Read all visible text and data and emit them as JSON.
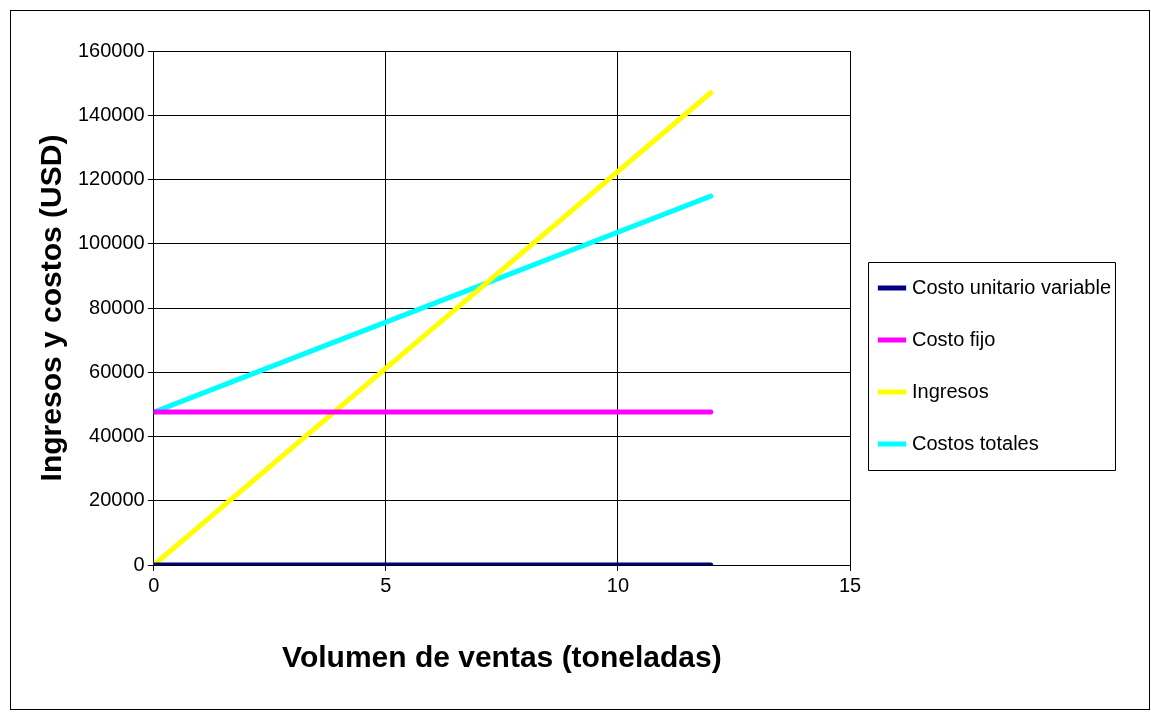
{
  "chart_data": {
    "type": "line",
    "xlabel": "Volumen de ventas (toneladas)",
    "ylabel": "Ingresos y costos (USD)",
    "x": [
      0,
      12
    ],
    "series": [
      {
        "name": "Costo unitario variable",
        "color": "#000080",
        "values": [
          0,
          0
        ]
      },
      {
        "name": "Costo fijo",
        "color": "#ff00ff",
        "values": [
          47600,
          47600
        ]
      },
      {
        "name": "Ingresos",
        "color": "#ffff00",
        "values": [
          0,
          147000
        ]
      },
      {
        "name": "Costos totales",
        "color": "#00ffff",
        "values": [
          47600,
          114800
        ]
      }
    ],
    "xlim": [
      0,
      15
    ],
    "xticks": [
      0,
      5,
      10,
      15
    ],
    "ylim": [
      0,
      160000
    ],
    "yticks": [
      0,
      20000,
      40000,
      60000,
      80000,
      100000,
      120000,
      140000,
      160000
    ],
    "grid": true,
    "legend": "right",
    "marker": "none",
    "line_style": "solid"
  }
}
